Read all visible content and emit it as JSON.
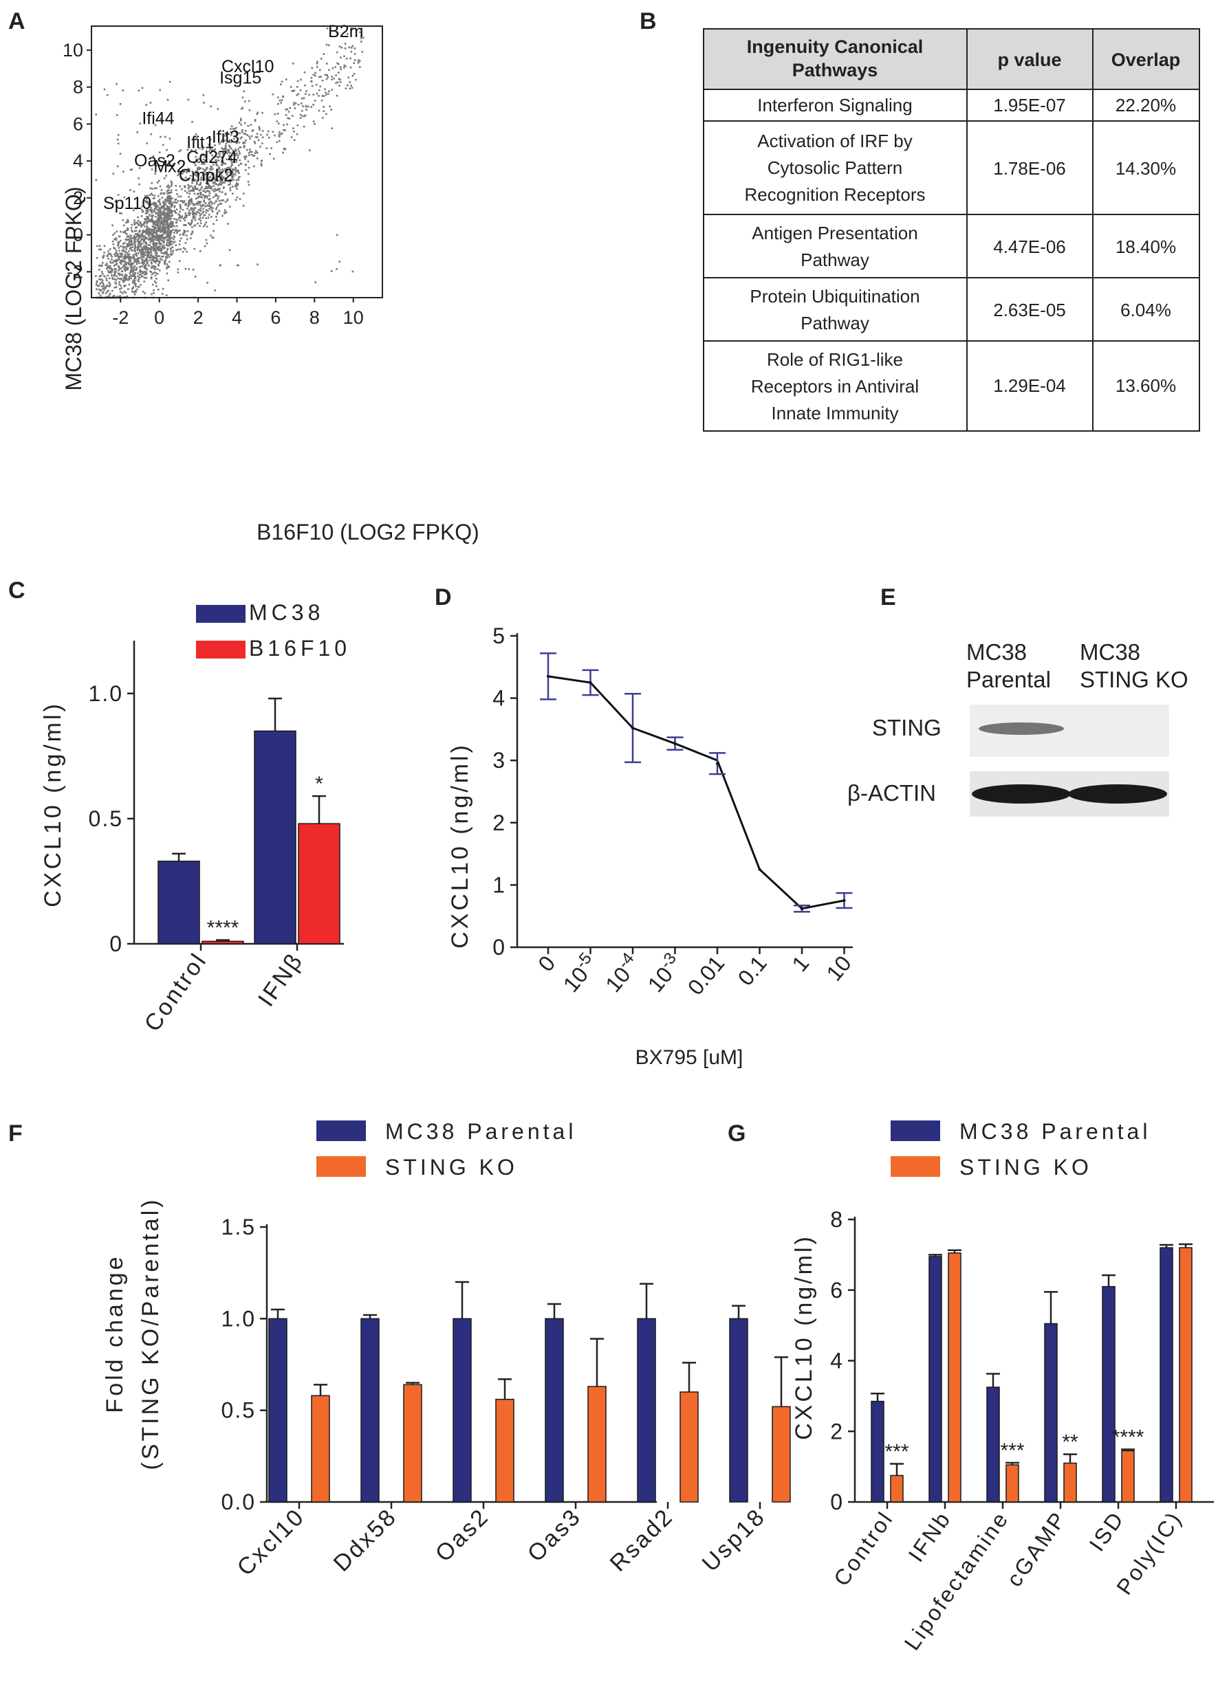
{
  "colors": {
    "navy": "#2b2f7d",
    "red": "#ee2a2c",
    "orange": "#f26a2b",
    "gray_points": "#777777",
    "table_header_bg": "#d9d9d9",
    "line_d": "#111111",
    "err_d": "#3b3f8f",
    "blot_band": "#1a1a1a",
    "blot_bg": "#eeeeee"
  },
  "panel_labels": {
    "a": "A",
    "b": "B",
    "c": "C",
    "d": "D",
    "e": "E",
    "f": "F",
    "g": "G"
  },
  "chart_data": [
    {
      "panel": "A",
      "type": "scatter",
      "xlabel": "B16F10 (LOG2 FPKQ)",
      "ylabel": "MC38 (LOG2 FPKQ)",
      "xlim": [
        -3.5,
        11.5
      ],
      "ylim": [
        -3.4,
        11.3
      ],
      "x_ticks": [
        -2,
        0,
        2,
        4,
        6,
        8,
        10
      ],
      "y_ticks": [
        -2,
        0,
        2,
        4,
        6,
        8,
        10
      ],
      "x_tick_labels": [
        "-2",
        "0",
        "2",
        "4",
        "6",
        "8",
        "10"
      ],
      "y_tick_labels": [
        "-2",
        "0",
        "2",
        "4",
        "6",
        "8",
        "10"
      ],
      "labeled_genes": [
        {
          "name": "B2m",
          "x": 8.7,
          "y": 10.7
        },
        {
          "name": "Cxcl10",
          "x": 3.2,
          "y": 8.8
        },
        {
          "name": "Isg15",
          "x": 3.1,
          "y": 8.2
        },
        {
          "name": "Ifi44",
          "x": -0.9,
          "y": 6.0
        },
        {
          "name": "Ifit3",
          "x": 2.7,
          "y": 5.0
        },
        {
          "name": "Ifit1",
          "x": 1.4,
          "y": 4.7
        },
        {
          "name": "Cd274",
          "x": 1.4,
          "y": 3.9
        },
        {
          "name": "Oas2",
          "x": -1.3,
          "y": 3.7
        },
        {
          "name": "Mx2",
          "x": -0.3,
          "y": 3.4
        },
        {
          "name": "Cmpk2",
          "x": 1.0,
          "y": 2.9
        },
        {
          "name": "Sp110",
          "x": -2.9,
          "y": 1.4
        }
      ]
    },
    {
      "panel": "B",
      "type": "table",
      "columns": [
        "Ingenuity Canonical Pathways",
        "p value",
        "Overlap"
      ],
      "rows": [
        {
          "pathway": [
            "Interferon Signaling"
          ],
          "p_value": "1.95E-07",
          "overlap": "22.20%"
        },
        {
          "pathway": [
            "Activation of IRF by",
            "Cytosolic Pattern",
            "Recognition Receptors"
          ],
          "p_value": "1.78E-06",
          "overlap": "14.30%"
        },
        {
          "pathway": [
            "Antigen Presentation",
            "Pathway"
          ],
          "p_value": "4.47E-06",
          "overlap": "18.40%"
        },
        {
          "pathway": [
            "Protein Ubiquitination",
            "Pathway"
          ],
          "p_value": "2.63E-05",
          "overlap": "6.04%"
        },
        {
          "pathway": [
            "Role of RIG1-like",
            "Receptors in Antiviral",
            "Innate Immunity"
          ],
          "p_value": "1.29E-04",
          "overlap": "13.60%"
        }
      ]
    },
    {
      "panel": "C",
      "type": "bar",
      "categories": [
        "Control",
        "IFNβ"
      ],
      "series": [
        {
          "name": "MC38",
          "values": [
            0.33,
            0.85
          ],
          "errors": [
            0.03,
            0.13
          ]
        },
        {
          "name": "B16F10",
          "values": [
            0.01,
            0.48
          ],
          "errors": [
            0.005,
            0.11
          ]
        }
      ],
      "significance": [
        [
          "",
          ""
        ],
        [
          "****",
          "*"
        ]
      ],
      "ylabel": "CXCL10 (ng/ml)",
      "ylim": [
        0,
        1.2
      ],
      "y_ticks": [
        0,
        0.5,
        1.0
      ],
      "y_tick_labels": [
        "0",
        "0.5",
        "1.0"
      ],
      "tick_labels": [
        "Control",
        "IFNβ"
      ]
    },
    {
      "panel": "D",
      "type": "line",
      "x": [
        "0",
        "10-5",
        "10-4",
        "10-3",
        "0.01",
        "0.1",
        "1",
        "10"
      ],
      "x_tick_labels": [
        [
          "0",
          ""
        ],
        [
          "10",
          "-5"
        ],
        [
          "10",
          "-4"
        ],
        [
          "10",
          "-3"
        ],
        [
          "0.01",
          ""
        ],
        [
          "0.1",
          ""
        ],
        [
          "1",
          ""
        ],
        [
          "10",
          ""
        ]
      ],
      "values": [
        4.35,
        4.25,
        3.52,
        3.27,
        2.95,
        1.25,
        0.62,
        0.75
      ],
      "errors": [
        0.37,
        0.2,
        0.55,
        0.1,
        0.17,
        0,
        0.05,
        0.12
      ],
      "line_values": [
        4.35,
        4.25,
        3.52,
        3.27,
        3.0,
        1.25,
        0.62,
        0.75
      ],
      "xlabel": "BX795 [uM]",
      "ylabel": "CXCL10 (ng/ml)",
      "ylim": [
        0,
        5
      ],
      "y_ticks": [
        0,
        1,
        2,
        3,
        4,
        5
      ],
      "y_tick_labels": [
        "0",
        "1",
        "2",
        "3",
        "4",
        "5"
      ]
    },
    {
      "panel": "F",
      "type": "bar",
      "categories": [
        "Cxcl10",
        "Ddx58",
        "Oas2",
        "Oas3",
        "Rsad2",
        "Usp18"
      ],
      "series": [
        {
          "name": "MC38 Parental",
          "values": [
            1.0,
            1.0,
            1.0,
            1.0,
            1.0,
            1.0
          ],
          "errors": [
            0.05,
            0.02,
            0.2,
            0.08,
            0.19,
            0.07
          ]
        },
        {
          "name": "STING KO",
          "values": [
            0.58,
            0.64,
            0.56,
            0.63,
            0.6,
            0.52
          ],
          "errors": [
            0.06,
            0.01,
            0.11,
            0.26,
            0.16,
            0.27
          ]
        }
      ],
      "ylabel": "Fold change (STING KO/Parental)",
      "ylim": [
        0,
        1.5
      ],
      "y_ticks": [
        0,
        0.5,
        1.0,
        1.5
      ],
      "y_tick_labels": [
        "0.0",
        "0.5",
        "1.0",
        "1.5"
      ]
    },
    {
      "panel": "G",
      "type": "bar",
      "categories": [
        "Control",
        "IFNb",
        "Lipofectamine",
        "cGAMP",
        "ISD",
        "Poly(IC)"
      ],
      "series": [
        {
          "name": "MC38 Parental",
          "values": [
            2.85,
            6.95,
            3.25,
            5.05,
            6.1,
            7.2
          ],
          "errors": [
            0.22,
            0.05,
            0.38,
            0.9,
            0.32,
            0.08
          ]
        },
        {
          "name": "STING KO",
          "values": [
            0.75,
            7.05,
            1.05,
            1.1,
            1.45,
            7.2
          ],
          "errors": [
            0.33,
            0.08,
            0.06,
            0.25,
            0.04,
            0.1
          ]
        }
      ],
      "significance": [
        "***",
        "",
        "***",
        "**",
        "****",
        ""
      ],
      "ylabel": "CXCL10 (ng/ml)",
      "ylim": [
        0,
        8
      ],
      "y_ticks": [
        0,
        2,
        4,
        6,
        8
      ],
      "y_tick_labels": [
        "0",
        "2",
        "4",
        "6",
        "8"
      ]
    }
  ],
  "panel_e": {
    "lane_labels": [
      [
        "MC38",
        "Parental"
      ],
      [
        "MC38",
        "STING KO"
      ]
    ],
    "row_labels": [
      "STING",
      "β-ACTIN"
    ],
    "band_intensity": {
      "sting": [
        1,
        0
      ],
      "actin": [
        1,
        1
      ]
    }
  }
}
